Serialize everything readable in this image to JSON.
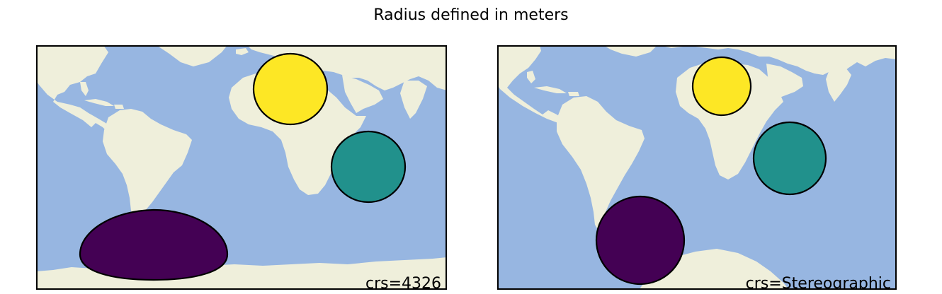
{
  "title": "Radius defined in meters",
  "colors": {
    "ocean": "#97b6e1",
    "land": "#efefdb",
    "yellow": "#fde725",
    "teal": "#21918c",
    "purple": "#440154"
  },
  "panels": [
    {
      "crs_label": "crs=4326",
      "circles": [
        {
          "name": "yellow-circle",
          "color": "#fde725"
        },
        {
          "name": "teal-circle",
          "color": "#21918c"
        },
        {
          "name": "purple-circle",
          "color": "#440154"
        }
      ]
    },
    {
      "crs_label": "crs=Stereographic",
      "circles": [
        {
          "name": "yellow-circle",
          "color": "#fde725"
        },
        {
          "name": "teal-circle",
          "color": "#21918c"
        },
        {
          "name": "purple-circle",
          "color": "#440154"
        }
      ]
    }
  ]
}
